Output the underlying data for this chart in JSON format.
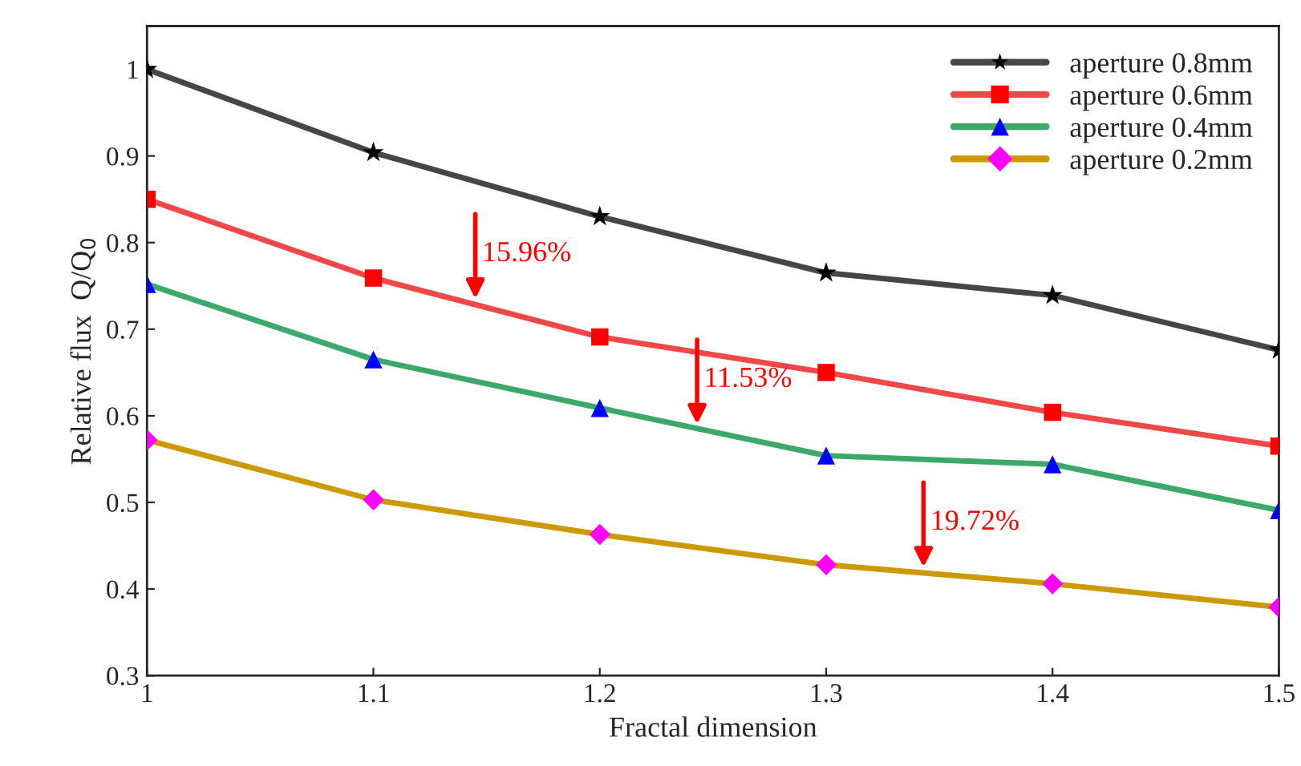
{
  "chart_data": {
    "type": "line",
    "xlabel": "Fractal dimension",
    "ylabel": "Relative flux  Q/Q$_{0}$",
    "x": [
      1,
      1.1,
      1.2,
      1.3,
      1.4,
      1.5
    ],
    "series": [
      {
        "name": "aperture 0.8mm",
        "color": "#464646",
        "colors": [
          "#000000",
          "#000000",
          "#000000",
          "#000000",
          "#000000",
          "#000000"
        ],
        "marker": "star",
        "values": [
          1.0,
          0.904,
          0.83,
          0.765,
          0.739,
          0.676
        ]
      },
      {
        "name": "aperture 0.6mm",
        "color": "#f04848",
        "colors": [
          "#ff0000",
          "#ff0000",
          "#ff0000",
          "#ff0000",
          "#ff0000",
          "#ff0000"
        ],
        "marker": "square",
        "values": [
          0.85,
          0.759,
          0.691,
          0.65,
          0.604,
          0.565
        ]
      },
      {
        "name": "aperture 0.4mm",
        "color": "#3ca86a",
        "colors": [
          "#0000ff",
          "#0000ff",
          "#0000ff",
          "#0000ff",
          "#0000ff",
          "#0000ff"
        ],
        "marker": "triangle",
        "values": [
          0.752,
          0.665,
          0.609,
          0.554,
          0.544,
          0.491
        ]
      },
      {
        "name": "aperture 0.2mm",
        "color": "#cc9a00",
        "colors": [
          "#ff00ff",
          "#ff00ff",
          "#ff00ff",
          "#ff00ff",
          "#ff00ff",
          "#ff00ff"
        ],
        "marker": "diamond",
        "values": [
          0.572,
          0.503,
          0.463,
          0.428,
          0.406,
          0.379
        ]
      }
    ],
    "annotations": [
      {
        "text": "15.96%",
        "x": 1.145,
        "y": 0.73
      },
      {
        "text": "11.53%",
        "x": 1.243,
        "y": 0.585
      },
      {
        "text": "19.72%",
        "x": 1.343,
        "y": 0.42
      }
    ],
    "xlim": [
      1,
      1.5
    ],
    "xticks": [
      1,
      1.1,
      1.2,
      1.3,
      1.4,
      1.5
    ],
    "ylim": [
      0.3,
      1.05
    ],
    "yticks": [
      0.3,
      0.4,
      0.5,
      0.6,
      0.7,
      0.8,
      0.9,
      1
    ],
    "legend": "top right",
    "grid": false,
    "line_style": "solid"
  }
}
